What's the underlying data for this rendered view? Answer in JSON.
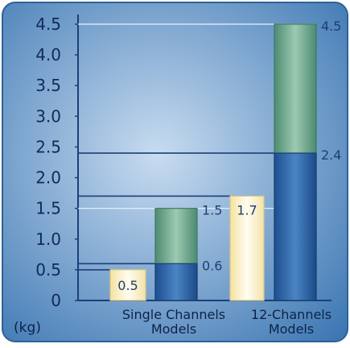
{
  "chart_data": {
    "type": "bar",
    "y_unit": "(kg)",
    "ylim": [
      0,
      4.5
    ],
    "y_ticks": [
      {
        "value": 0,
        "label": "0"
      },
      {
        "value": 0.5,
        "label": "0.5"
      },
      {
        "value": 1.0,
        "label": "1.0"
      },
      {
        "value": 1.5,
        "label": "1.5"
      },
      {
        "value": 2.0,
        "label": "2.0"
      },
      {
        "value": 2.5,
        "label": "2.5"
      },
      {
        "value": 3.0,
        "label": "3.0"
      },
      {
        "value": 3.5,
        "label": "3.5"
      },
      {
        "value": 4.0,
        "label": "4.0"
      },
      {
        "value": 4.5,
        "label": "4.5"
      }
    ],
    "categories": [
      {
        "label_lines": [
          "Single Channels",
          "Models"
        ]
      },
      {
        "label_lines": [
          "12-Channels",
          "Models"
        ]
      }
    ],
    "bars": [
      {
        "category": 0,
        "style": "cream",
        "value": 0.5,
        "label": "0.5",
        "label_position": "inside"
      },
      {
        "category": 0,
        "style": "green",
        "value": 1.5,
        "label": "1.5",
        "label_position": "right"
      },
      {
        "category": 0,
        "style": "blue",
        "value": 0.6,
        "label": "0.6",
        "label_position": "right"
      },
      {
        "category": 1,
        "style": "cream",
        "value": 1.7,
        "label": "1.7",
        "label_position": "inside"
      },
      {
        "category": 1,
        "style": "green",
        "value": 4.5,
        "label": "4.5",
        "label_position": "right"
      },
      {
        "category": 1,
        "style": "blue",
        "value": 2.4,
        "label": "2.4",
        "label_position": "right"
      }
    ],
    "colors": {
      "background_light": "#c8dcf0",
      "background_dark": "#3d77b3",
      "border": "#2e6296",
      "axis": "#1c3f7a",
      "cream": "#fbf2cf",
      "green": "#6fa88f",
      "blue": "#2c64a8",
      "label_text": "#1f3f73"
    },
    "grid": false,
    "legend": "none"
  }
}
